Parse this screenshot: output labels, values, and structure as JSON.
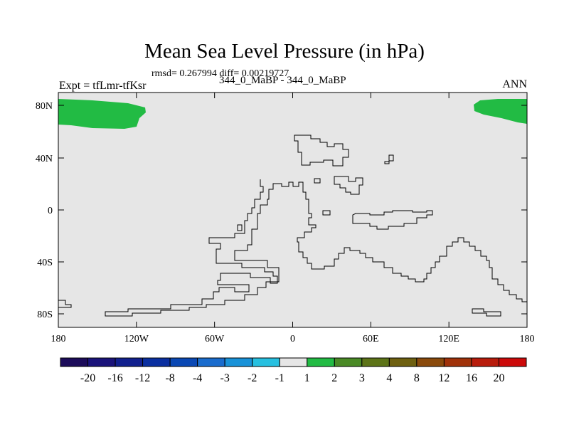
{
  "title": "Mean Sea Level Pressure (in hPa)",
  "stats_line": "rmsd= 0.267994 diff= 0.00219727",
  "runs_line": "344_0_MaBP - 344_0_MaBP",
  "expt_label": "Expt = tfLmr-tfKsr",
  "season_label": "ANN",
  "map": {
    "background_color": "#e6e6e6",
    "positive_anomaly_color": "#22bb44",
    "y_ticks": [
      "80N",
      "40N",
      "0",
      "40S",
      "80S"
    ],
    "x_ticks": [
      "180",
      "120W",
      "60W",
      "0",
      "60E",
      "120E",
      "180"
    ]
  },
  "colorbar": {
    "labels": [
      "-20",
      "-16",
      "-12",
      "-8",
      "-4",
      "-3",
      "-2",
      "-1",
      "1",
      "2",
      "3",
      "4",
      "8",
      "12",
      "16",
      "20"
    ],
    "colors": [
      "#1c0c5a",
      "#1a137a",
      "#12208e",
      "#0a2fa0",
      "#0a48b4",
      "#1a6ccd",
      "#1992d8",
      "#27c0e0",
      "#e6e6e6",
      "#22bb44",
      "#4a8a26",
      "#5d7418",
      "#6e6010",
      "#8a4a0c",
      "#a0320a",
      "#b81c0c",
      "#cc0a0a"
    ]
  }
}
